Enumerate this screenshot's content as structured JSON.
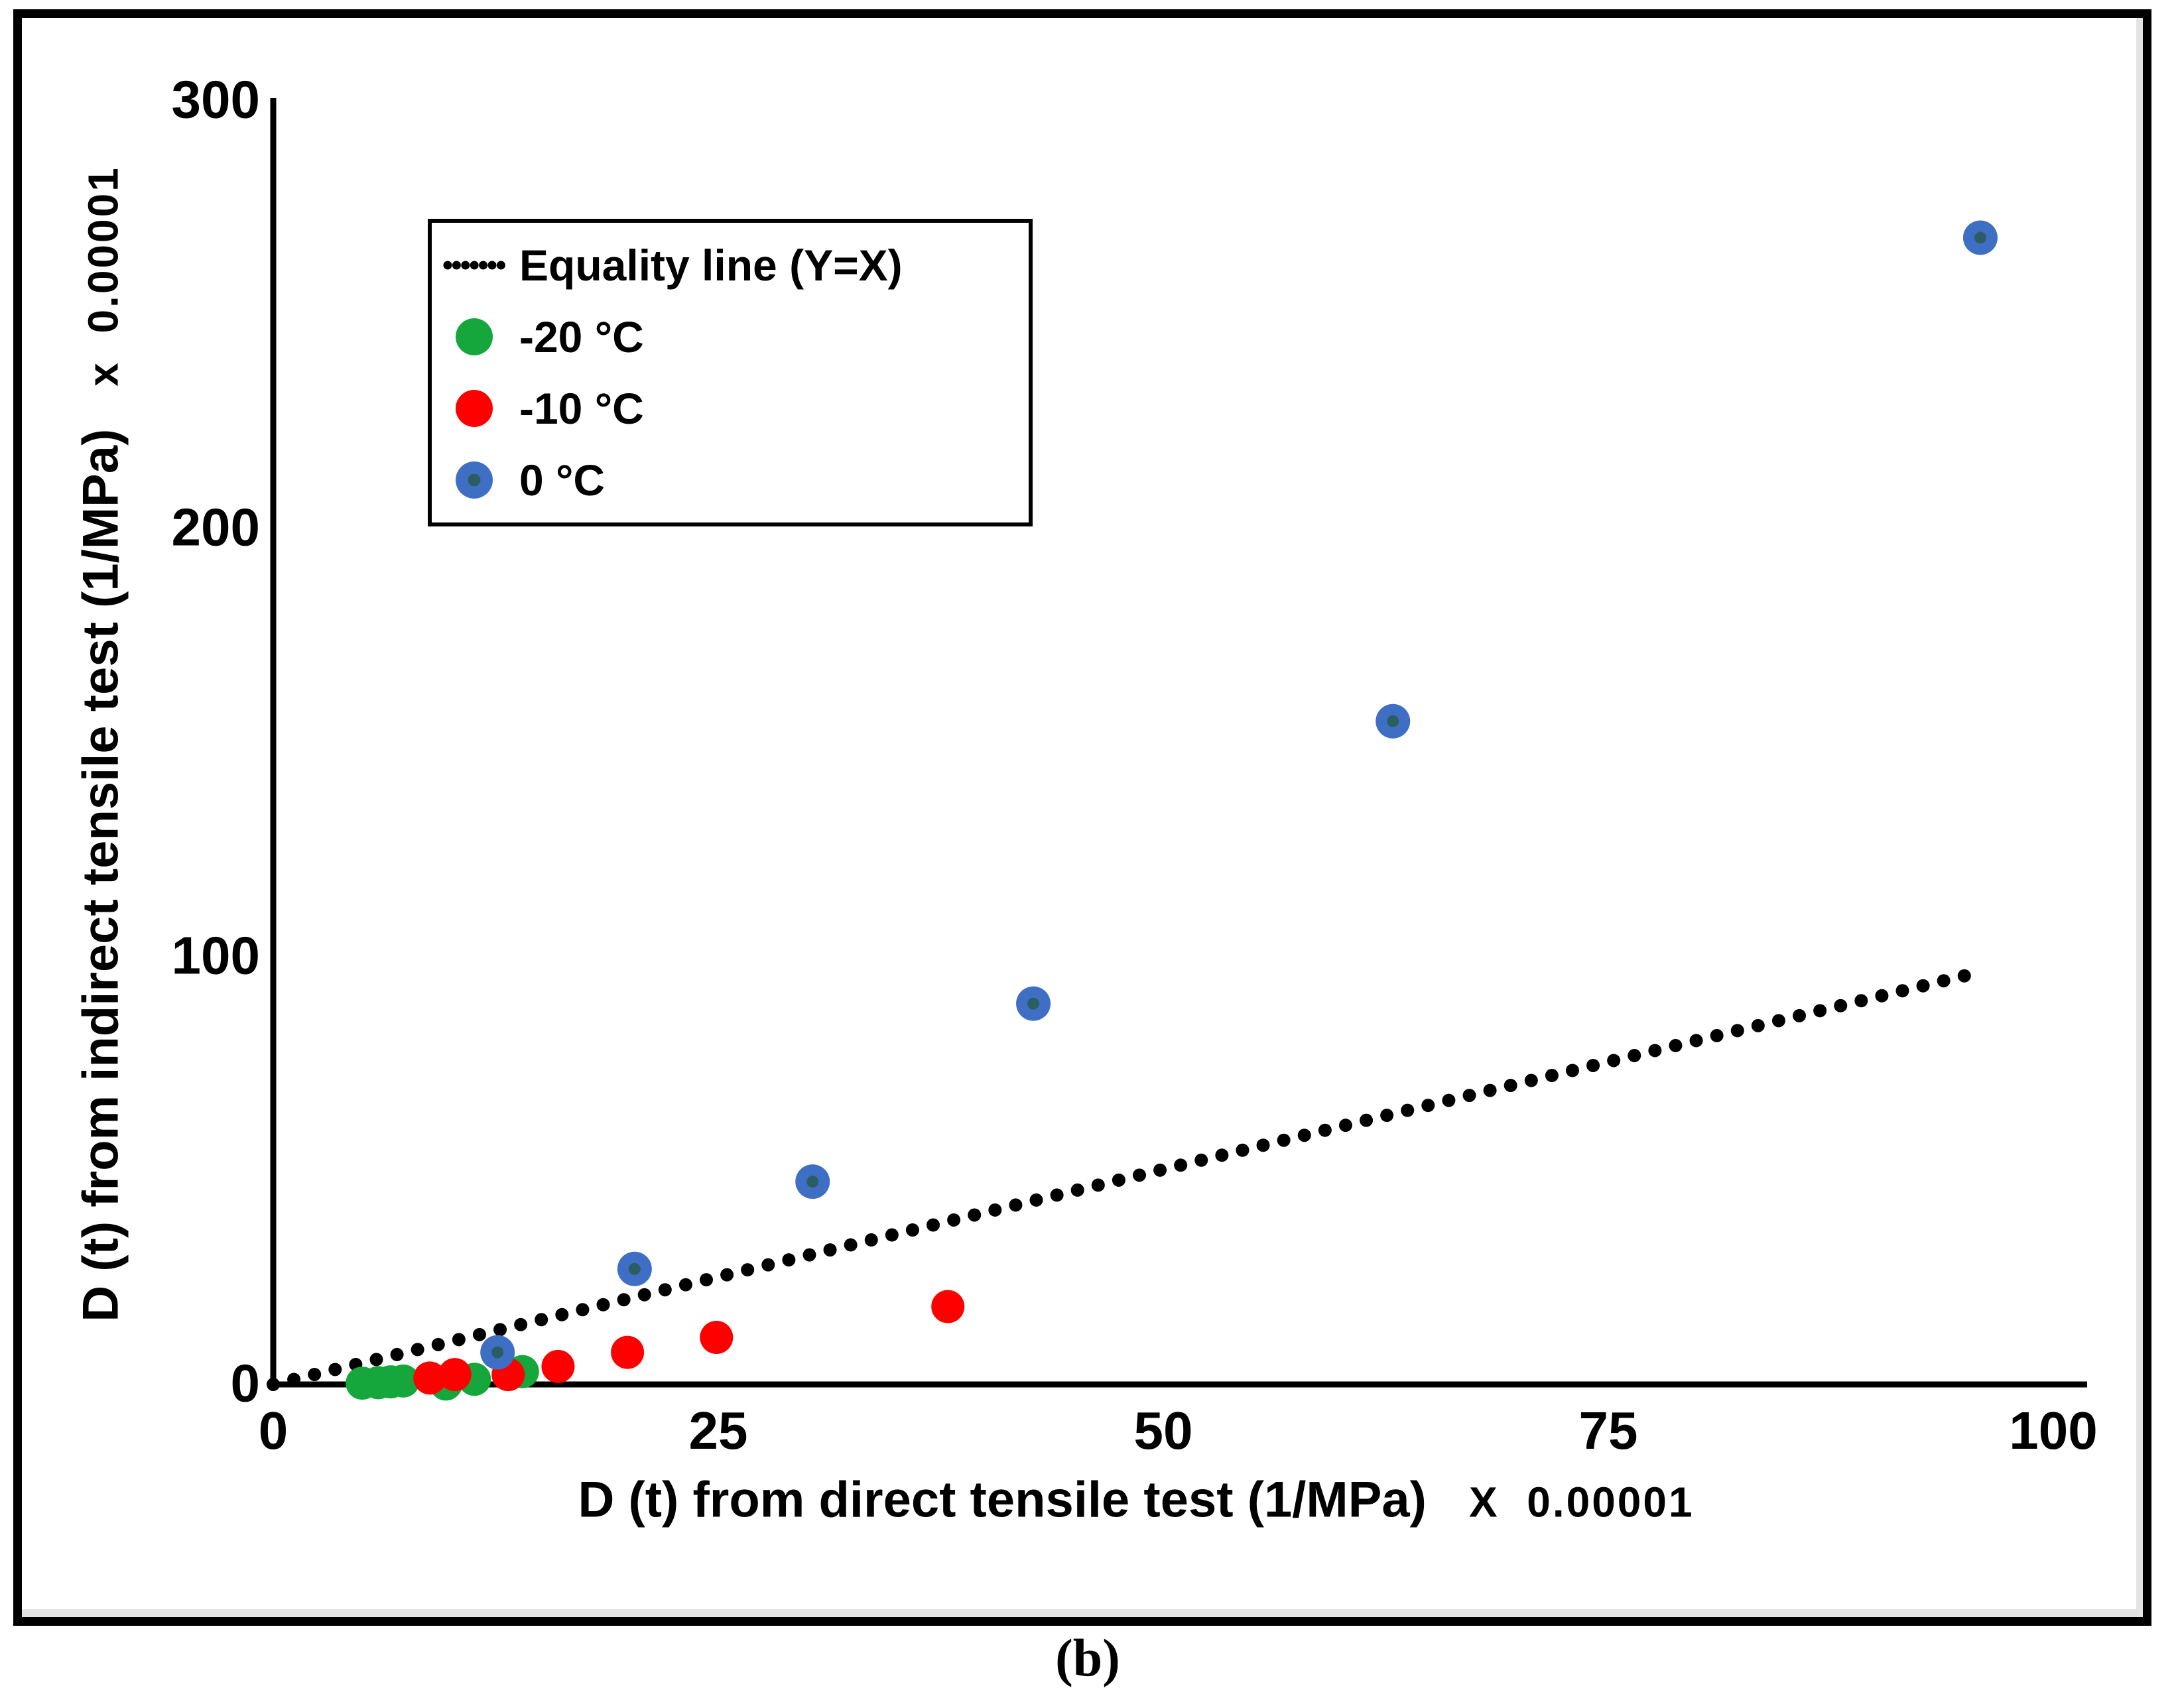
{
  "figure": {
    "caption": "(b)"
  },
  "axes": {
    "x": {
      "label": "D (t) from direct tensile test (1/MPa)",
      "multiplier": "X  0.00001",
      "ticks": [
        0,
        25,
        50,
        75,
        100
      ]
    },
    "y": {
      "label": "D (t) from indirect tensile test (1/MPa)",
      "multiplier": "x  0.00001",
      "ticks": [
        0,
        100,
        200,
        300
      ]
    }
  },
  "legend": {
    "equality_label": "Equality line (Y=X)"
  },
  "colors": {
    "green": "#16A73C",
    "red": "#FF0000",
    "blue": "#3F6FC5",
    "blue_center": "#2B5E63",
    "black": "#000000"
  },
  "chart_data": {
    "type": "scatter",
    "title": "",
    "xlabel": "D (t) from direct tensile test (1/MPa) X 0.00001",
    "ylabel": "D (t) from indirect tensile test (1/MPa) x 0.00001",
    "xlim": [
      0,
      100
    ],
    "ylim": [
      0,
      300
    ],
    "grid": false,
    "legend_position": "upper-left",
    "equality_line": {
      "label": "Equality line (Y=X)",
      "from": [
        0,
        0
      ],
      "to": [
        95,
        95.5
      ],
      "style": "dotted"
    },
    "series": [
      {
        "name": "-20 °C",
        "color": "#16A73C",
        "points": [
          [
            5.0,
            0.3
          ],
          [
            5.9,
            0.4
          ],
          [
            6.6,
            0.6
          ],
          [
            7.3,
            0.8
          ],
          [
            9.7,
            0.1
          ],
          [
            11.3,
            1.2
          ],
          [
            14.0,
            3.0
          ]
        ]
      },
      {
        "name": "-10 °C",
        "color": "#FF0000",
        "points": [
          [
            8.8,
            1.5
          ],
          [
            10.2,
            2.3
          ],
          [
            13.2,
            2.3
          ],
          [
            16.0,
            4.2
          ],
          [
            19.9,
            7.5
          ],
          [
            24.9,
            11.0
          ],
          [
            37.9,
            18.2
          ]
        ]
      },
      {
        "name": "0 °C",
        "color": "#3F6FC5",
        "center_color": "#2B5E63",
        "points": [
          [
            12.6,
            7.5
          ],
          [
            20.3,
            27.0
          ],
          [
            30.3,
            47.4
          ],
          [
            42.7,
            89.0
          ],
          [
            62.9,
            155.0
          ],
          [
            95.9,
            268.0
          ]
        ]
      }
    ]
  }
}
